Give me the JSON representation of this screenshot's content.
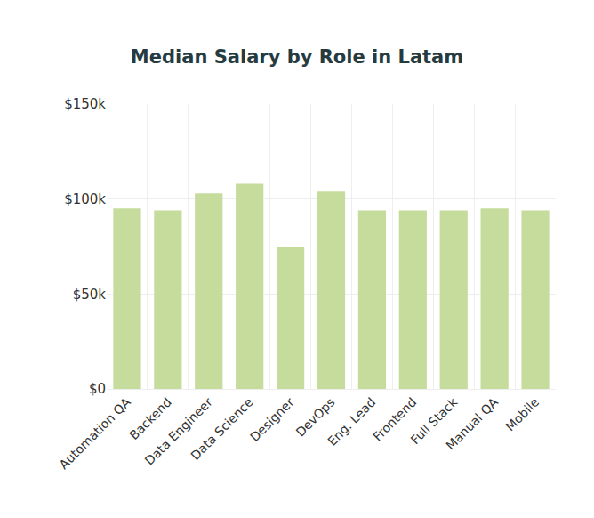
{
  "chart_data": {
    "type": "bar",
    "title": "Median Salary by Role in Latam",
    "categories": [
      "Automation QA",
      "Backend",
      "Data Engineer",
      "Data Science",
      "Designer",
      "DevOps",
      "Eng. Lead",
      "Frontend",
      "Full Stack",
      "Manual QA",
      "Mobile"
    ],
    "values": [
      95000,
      94000,
      103000,
      108000,
      75000,
      104000,
      94000,
      94000,
      94000,
      95000,
      94000
    ],
    "color": "#c5dc9d",
    "ylim": [
      0,
      150000
    ],
    "yticks": [
      {
        "value": 0,
        "label": "$0"
      },
      {
        "value": 50000,
        "label": "$50k"
      },
      {
        "value": 100000,
        "label": "$100k"
      },
      {
        "value": 150000,
        "label": "$150k"
      }
    ],
    "grid": true
  }
}
